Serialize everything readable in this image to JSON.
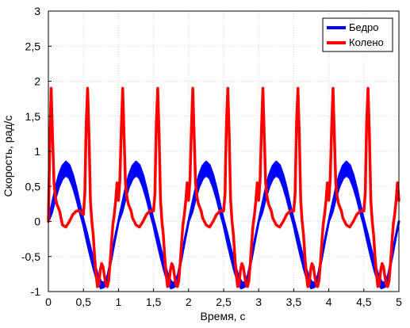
{
  "chart_data": {
    "type": "line",
    "title": "",
    "xlabel": "Время, с",
    "ylabel": "Скорость, рад/с",
    "xlim": [
      0,
      5
    ],
    "ylim": [
      -1,
      3
    ],
    "xticks": [
      0,
      0.5,
      1,
      1.5,
      2,
      2.5,
      3,
      3.5,
      4,
      4.5,
      5
    ],
    "xtick_labels": [
      "0",
      "0,5",
      "1",
      "1,5",
      "2",
      "2,5",
      "3",
      "3,5",
      "4",
      "4,5",
      "5"
    ],
    "yticks": [
      -1,
      -0.5,
      0,
      0.5,
      1,
      1.5,
      2,
      2.5,
      3
    ],
    "ytick_labels": [
      "-1",
      "-0,5",
      "0",
      "0,5",
      "1",
      "1,5",
      "2",
      "2,5",
      "3"
    ],
    "grid": true,
    "legend_position": "top-right",
    "series": [
      {
        "name": "Бедро",
        "color": "#0000ff",
        "band": true,
        "x": [
          0,
          0.05,
          0.1,
          0.15,
          0.2,
          0.25,
          0.3,
          0.35,
          0.4,
          0.45,
          0.5,
          0.55,
          0.6,
          0.65,
          0.7,
          0.75,
          0.8,
          0.85,
          0.9,
          0.95,
          1.0,
          1.05,
          1.1,
          1.15,
          1.2,
          1.25,
          1.3,
          1.35,
          1.4,
          1.45,
          1.5,
          1.55,
          1.6,
          1.65,
          1.7,
          1.75,
          1.8,
          1.85,
          1.9,
          1.95,
          2.0,
          2.05,
          2.1,
          2.15,
          2.2,
          2.25,
          2.3,
          2.35,
          2.4,
          2.45,
          2.5,
          2.55,
          2.6,
          2.65,
          2.7,
          2.75,
          2.8,
          2.85,
          2.9,
          2.95,
          3.0,
          3.05,
          3.1,
          3.15,
          3.2,
          3.25,
          3.3,
          3.35,
          3.4,
          3.45,
          3.5,
          3.55,
          3.6,
          3.65,
          3.7,
          3.75,
          3.8,
          3.85,
          3.9,
          3.95,
          4.0,
          4.05,
          4.1,
          4.15,
          4.2,
          4.25,
          4.3,
          4.35,
          4.4,
          4.45,
          4.5,
          4.55,
          4.6,
          4.65,
          4.7,
          4.75,
          4.8,
          4.85,
          4.9,
          4.95,
          5.0
        ],
        "y_upper": [
          0,
          0.23,
          0.46,
          0.66,
          0.79,
          0.85,
          0.8,
          0.66,
          0.46,
          0.23,
          0.02,
          -0.17,
          -0.38,
          -0.58,
          -0.75,
          -0.86,
          -0.88,
          -0.76,
          -0.5,
          -0.24,
          0,
          0.23,
          0.46,
          0.66,
          0.79,
          0.85,
          0.8,
          0.66,
          0.46,
          0.23,
          0.02,
          -0.17,
          -0.38,
          -0.58,
          -0.75,
          -0.86,
          -0.88,
          -0.76,
          -0.5,
          -0.24,
          0,
          0.23,
          0.46,
          0.66,
          0.79,
          0.85,
          0.8,
          0.66,
          0.46,
          0.23,
          0.02,
          -0.17,
          -0.38,
          -0.58,
          -0.75,
          -0.86,
          -0.88,
          -0.76,
          -0.5,
          -0.24,
          0,
          0.23,
          0.46,
          0.66,
          0.79,
          0.85,
          0.8,
          0.66,
          0.46,
          0.23,
          0.02,
          -0.17,
          -0.38,
          -0.58,
          -0.75,
          -0.86,
          -0.88,
          -0.76,
          -0.5,
          -0.24,
          0,
          0.23,
          0.46,
          0.66,
          0.79,
          0.85,
          0.8,
          0.66,
          0.46,
          0.23,
          0.02,
          -0.17,
          -0.38,
          -0.58,
          -0.75,
          -0.86,
          -0.88,
          -0.76,
          -0.5,
          -0.24,
          0
        ],
        "y_lower": [
          0,
          0.13,
          0.33,
          0.5,
          0.61,
          0.66,
          0.62,
          0.5,
          0.33,
          0.13,
          -0.05,
          -0.28,
          -0.49,
          -0.69,
          -0.86,
          -0.95,
          -0.93,
          -0.78,
          -0.52,
          -0.25,
          0,
          0.13,
          0.33,
          0.5,
          0.61,
          0.66,
          0.62,
          0.5,
          0.33,
          0.13,
          -0.05,
          -0.28,
          -0.49,
          -0.69,
          -0.86,
          -0.95,
          -0.93,
          -0.78,
          -0.52,
          -0.25,
          0,
          0.13,
          0.33,
          0.5,
          0.61,
          0.66,
          0.62,
          0.5,
          0.33,
          0.13,
          -0.05,
          -0.28,
          -0.49,
          -0.69,
          -0.86,
          -0.95,
          -0.93,
          -0.78,
          -0.52,
          -0.25,
          0,
          0.13,
          0.33,
          0.5,
          0.61,
          0.66,
          0.62,
          0.5,
          0.33,
          0.13,
          -0.05,
          -0.28,
          -0.49,
          -0.69,
          -0.86,
          -0.95,
          -0.93,
          -0.78,
          -0.52,
          -0.25,
          0,
          0.13,
          0.33,
          0.5,
          0.61,
          0.66,
          0.62,
          0.5,
          0.33,
          0.13,
          -0.05,
          -0.28,
          -0.49,
          -0.69,
          -0.86,
          -0.95,
          -0.93,
          -0.78,
          -0.52,
          -0.25,
          0
        ]
      },
      {
        "name": "Колено",
        "color": "#ff0000",
        "x": [
          0,
          0.02,
          0.04,
          0.06,
          0.08,
          0.1,
          0.12,
          0.14,
          0.16,
          0.18,
          0.2,
          0.25,
          0.3,
          0.35,
          0.4,
          0.45,
          0.5,
          0.52,
          0.54,
          0.56,
          0.58,
          0.6,
          0.62,
          0.64,
          0.66,
          0.68,
          0.7,
          0.72,
          0.74,
          0.76,
          0.78,
          0.8,
          0.82,
          0.84,
          0.86,
          0.88,
          0.9,
          0.92,
          0.94,
          0.96,
          0.98,
          1.0,
          1.02,
          1.04,
          1.06,
          1.08,
          1.1,
          1.12,
          1.14,
          1.16,
          1.18,
          1.2,
          1.25,
          1.3,
          1.35,
          1.4,
          1.45,
          1.5,
          1.52,
          1.54,
          1.56,
          1.58,
          1.6,
          1.62,
          1.64,
          1.66,
          1.68,
          1.7,
          1.72,
          1.74,
          1.76,
          1.78,
          1.8,
          1.82,
          1.84,
          1.86,
          1.88,
          1.9,
          1.92,
          1.94,
          1.96,
          1.98,
          2.0,
          2.02,
          2.04,
          2.06,
          2.08,
          2.1,
          2.12,
          2.14,
          2.16,
          2.18,
          2.2,
          2.25,
          2.3,
          2.35,
          2.4,
          2.45,
          2.5,
          2.52,
          2.54,
          2.56,
          2.58,
          2.6,
          2.62,
          2.64,
          2.66,
          2.68,
          2.7,
          2.72,
          2.74,
          2.76,
          2.78,
          2.8,
          2.82,
          2.84,
          2.86,
          2.88,
          2.9,
          2.92,
          2.94,
          2.96,
          2.98,
          3.0,
          3.02,
          3.04,
          3.06,
          3.08,
          3.1,
          3.12,
          3.14,
          3.16,
          3.18,
          3.2,
          3.25,
          3.3,
          3.35,
          3.4,
          3.45,
          3.5,
          3.52,
          3.54,
          3.56,
          3.58,
          3.6,
          3.62,
          3.64,
          3.66,
          3.68,
          3.7,
          3.72,
          3.74,
          3.76,
          3.78,
          3.8,
          3.82,
          3.84,
          3.86,
          3.88,
          3.9,
          3.92,
          3.94,
          3.96,
          3.98,
          4.0,
          4.02,
          4.04,
          4.06,
          4.08,
          4.1,
          4.12,
          4.14,
          4.16,
          4.18,
          4.2,
          4.25,
          4.3,
          4.35,
          4.4,
          4.45,
          4.5,
          4.52,
          4.54,
          4.56,
          4.58,
          4.6,
          4.62,
          4.64,
          4.66,
          4.68,
          4.7,
          4.72,
          4.74,
          4.76,
          4.78,
          4.8,
          4.82,
          4.84,
          4.86,
          4.88,
          4.9,
          4.92,
          4.94,
          4.96,
          4.98,
          5.0
        ],
        "y": [
          0,
          1.1,
          1.9,
          1.2,
          0.55,
          0.35,
          0.25,
          0.2,
          0.15,
          0.05,
          -0.05,
          -0.08,
          0,
          0.1,
          0.15,
          0.15,
          0.1,
          0.4,
          1.4,
          1.9,
          1.2,
          0.3,
          0,
          -0.2,
          -0.5,
          -0.75,
          -0.93,
          -0.9,
          -0.7,
          -0.6,
          -0.65,
          -0.78,
          -0.9,
          -0.93,
          -0.85,
          -0.6,
          -0.3,
          -0.05,
          0.1,
          0.3,
          0.55,
          0.3,
          0.6,
          1.3,
          1.9,
          1.2,
          0.55,
          0.35,
          0.25,
          0.2,
          0.15,
          0.05,
          -0.05,
          -0.08,
          0,
          0.1,
          0.15,
          0.15,
          0.4,
          1.4,
          1.9,
          1.2,
          0.3,
          0,
          -0.2,
          -0.5,
          -0.75,
          -0.93,
          -0.9,
          -0.7,
          -0.6,
          -0.65,
          -0.78,
          -0.9,
          -0.93,
          -0.85,
          -0.6,
          -0.3,
          -0.05,
          0.1,
          0.3,
          0.55,
          0.3,
          0.6,
          1.3,
          1.9,
          1.2,
          0.55,
          0.35,
          0.25,
          0.2,
          0.15,
          0.05,
          -0.05,
          -0.08,
          0,
          0.1,
          0.15,
          0.15,
          0.4,
          1.4,
          1.9,
          1.2,
          0.3,
          0,
          -0.2,
          -0.5,
          -0.75,
          -0.93,
          -0.9,
          -0.7,
          -0.6,
          -0.65,
          -0.78,
          -0.9,
          -0.93,
          -0.85,
          -0.6,
          -0.3,
          -0.05,
          0.1,
          0.3,
          0.55,
          0.3,
          0.6,
          1.3,
          1.9,
          1.2,
          0.55,
          0.35,
          0.25,
          0.2,
          0.15,
          0.05,
          -0.05,
          -0.08,
          0,
          0.1,
          0.15,
          0.15,
          0.4,
          1.4,
          1.9,
          1.2,
          0.3,
          0,
          -0.2,
          -0.5,
          -0.75,
          -0.93,
          -0.9,
          -0.7,
          -0.6,
          -0.65,
          -0.78,
          -0.9,
          -0.93,
          -0.85,
          -0.6,
          -0.3,
          -0.05,
          0.1,
          0.3,
          0.55,
          0.3,
          0.6,
          1.3,
          1.9,
          1.2,
          0.55,
          0.35,
          0.25,
          0.2,
          0.15,
          0.05,
          -0.05,
          -0.08,
          0,
          0.1,
          0.15,
          0.15,
          0.4,
          1.4,
          1.9,
          1.2,
          0.3,
          0,
          -0.2,
          -0.5,
          -0.75,
          -0.93,
          -0.9,
          -0.7,
          -0.6,
          -0.65,
          -0.78,
          -0.9,
          -0.93,
          -0.85,
          -0.6,
          -0.3,
          -0.05,
          0.1,
          0.3,
          0.55,
          0.3
        ]
      }
    ]
  }
}
